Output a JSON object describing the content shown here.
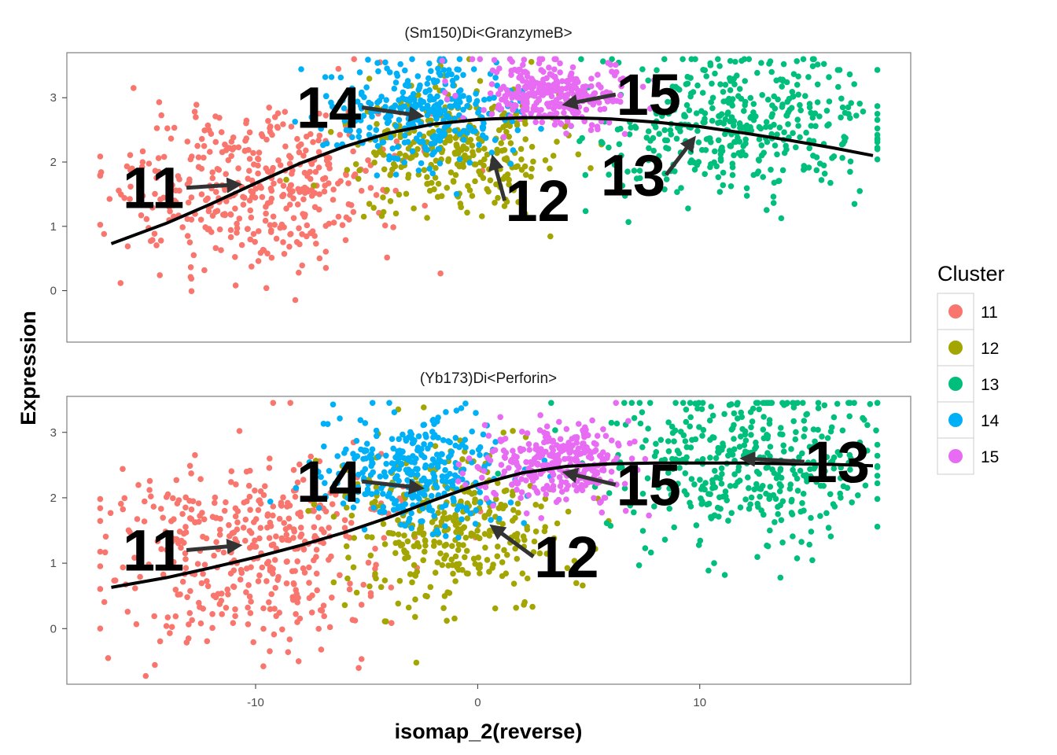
{
  "chart_data": {
    "type": "scatter",
    "xlabel": "isomap_2(reverse)",
    "ylabel": "Expression",
    "xlim": [
      -18.5,
      19.5
    ],
    "x_ticks": [
      {
        "value": -10,
        "label": "-10"
      },
      {
        "value": 0,
        "label": "0"
      },
      {
        "value": 10,
        "label": "10"
      }
    ],
    "y_ticks": [
      {
        "value": 0,
        "label": "0"
      },
      {
        "value": 1,
        "label": "1"
      },
      {
        "value": 2,
        "label": "2"
      },
      {
        "value": 3,
        "label": "3"
      }
    ],
    "legend": {
      "title": "Cluster",
      "position": "right",
      "entries": [
        {
          "label": "11",
          "color": "#F8766D"
        },
        {
          "label": "12",
          "color": "#A3A500"
        },
        {
          "label": "13",
          "color": "#00BF7D"
        },
        {
          "label": "14",
          "color": "#00B0F6"
        },
        {
          "label": "15",
          "color": "#E76BF3"
        }
      ]
    },
    "panels": [
      {
        "title": "(Sm150)Di<GranzymeB>",
        "ylim": [
          -0.8,
          3.7
        ],
        "trend": [
          [
            -16.5,
            0.73
          ],
          [
            -14,
            1.05
          ],
          [
            -12,
            1.35
          ],
          [
            -10,
            1.67
          ],
          [
            -8,
            1.98
          ],
          [
            -6,
            2.24
          ],
          [
            -4,
            2.45
          ],
          [
            -2,
            2.59
          ],
          [
            0,
            2.66
          ],
          [
            2,
            2.69
          ],
          [
            4,
            2.69
          ],
          [
            6,
            2.67
          ],
          [
            8,
            2.62
          ],
          [
            10,
            2.55
          ],
          [
            12,
            2.45
          ],
          [
            14,
            2.34
          ],
          [
            16,
            2.22
          ],
          [
            17.8,
            2.1
          ]
        ],
        "clusters": [
          {
            "id": "11",
            "color": "#F8766D",
            "center": [
              -10,
              1.6
            ],
            "spread": [
              3.2,
              0.65
            ],
            "n": 420,
            "seed": 11
          },
          {
            "id": "12",
            "color": "#A3A500",
            "center": [
              -1,
              2.2
            ],
            "spread": [
              2.4,
              0.5
            ],
            "n": 330,
            "seed": 112
          },
          {
            "id": "13",
            "color": "#00BF7D",
            "center": [
              11.5,
              2.55
            ],
            "spread": [
              3.2,
              0.55
            ],
            "n": 420,
            "seed": 113
          },
          {
            "id": "14",
            "color": "#00B0F6",
            "center": [
              -2.5,
              2.8
            ],
            "spread": [
              2.0,
              0.4
            ],
            "n": 320,
            "seed": 114
          },
          {
            "id": "15",
            "color": "#E76BF3",
            "center": [
              3.5,
              3.05
            ],
            "spread": [
              1.6,
              0.25
            ],
            "n": 300,
            "seed": 115
          }
        ],
        "labels": [
          {
            "text": "11",
            "x": -14.6,
            "y": 1.6,
            "arrow_to": [
              -10.8,
              1.65
            ]
          },
          {
            "text": "14",
            "x": -6.7,
            "y": 2.85,
            "arrow_to": [
              -2.6,
              2.72
            ]
          },
          {
            "text": "15",
            "x": 7.7,
            "y": 3.05,
            "arrow_to": [
              4,
              2.9
            ]
          },
          {
            "text": "12",
            "x": 2.7,
            "y": 1.4,
            "arrow_to": [
              0.7,
              2.05
            ]
          },
          {
            "text": "13",
            "x": 7.0,
            "y": 1.8,
            "arrow_to": [
              9.7,
              2.35
            ]
          }
        ]
      },
      {
        "title": "(Yb173)Di<Perforin>",
        "ylim": [
          -0.85,
          3.55
        ],
        "trend": [
          [
            -16.5,
            0.63
          ],
          [
            -14,
            0.78
          ],
          [
            -12,
            0.93
          ],
          [
            -10,
            1.09
          ],
          [
            -8,
            1.27
          ],
          [
            -6,
            1.47
          ],
          [
            -4,
            1.7
          ],
          [
            -2,
            1.96
          ],
          [
            0,
            2.2
          ],
          [
            2,
            2.38
          ],
          [
            4,
            2.48
          ],
          [
            6,
            2.52
          ],
          [
            8,
            2.53
          ],
          [
            10,
            2.53
          ],
          [
            12,
            2.53
          ],
          [
            14,
            2.52
          ],
          [
            16,
            2.51
          ],
          [
            17.8,
            2.49
          ]
        ],
        "clusters": [
          {
            "id": "11",
            "color": "#F8766D",
            "center": [
              -10,
              1.2
            ],
            "spread": [
              3.3,
              0.75
            ],
            "n": 420,
            "seed": 21
          },
          {
            "id": "12",
            "color": "#A3A500",
            "center": [
              -1.2,
              1.5
            ],
            "spread": [
              2.6,
              0.6
            ],
            "n": 340,
            "seed": 212
          },
          {
            "id": "13",
            "color": "#00BF7D",
            "center": [
              12,
              2.55
            ],
            "spread": [
              3.1,
              0.6
            ],
            "n": 420,
            "seed": 213
          },
          {
            "id": "14",
            "color": "#00B0F6",
            "center": [
              -2.8,
              2.35
            ],
            "spread": [
              2.0,
              0.45
            ],
            "n": 320,
            "seed": 214
          },
          {
            "id": "15",
            "color": "#E76BF3",
            "center": [
              3.5,
              2.55
            ],
            "spread": [
              1.7,
              0.3
            ],
            "n": 300,
            "seed": 215
          }
        ],
        "labels": [
          {
            "text": "11",
            "x": -14.6,
            "y": 1.2,
            "arrow_to": [
              -10.8,
              1.27
            ]
          },
          {
            "text": "14",
            "x": -6.7,
            "y": 2.25,
            "arrow_to": [
              -2.6,
              2.15
            ]
          },
          {
            "text": "15",
            "x": 7.7,
            "y": 2.2,
            "arrow_to": [
              4,
              2.38
            ]
          },
          {
            "text": "12",
            "x": 4.0,
            "y": 1.1,
            "arrow_to": [
              0.7,
              1.55
            ]
          },
          {
            "text": "13",
            "x": 16.2,
            "y": 2.55,
            "arrow_to": [
              12,
              2.6
            ]
          }
        ]
      }
    ]
  }
}
